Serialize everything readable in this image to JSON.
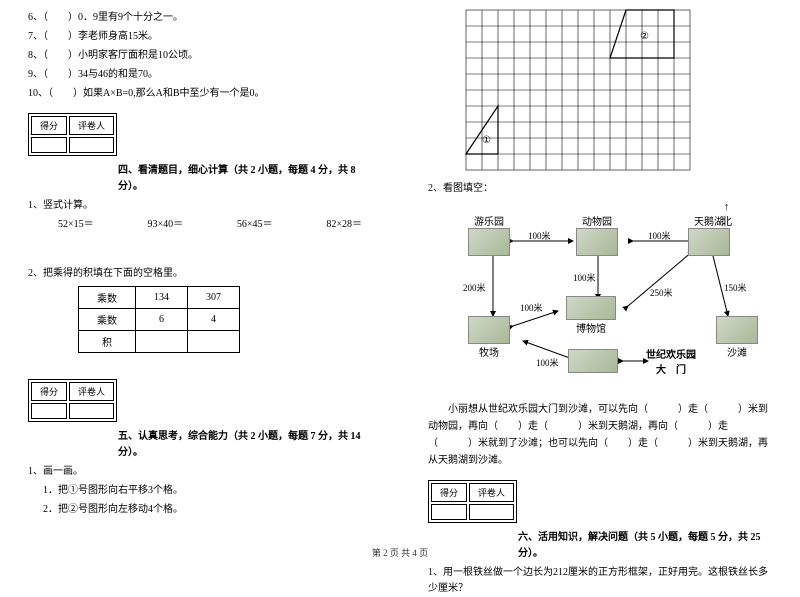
{
  "left": {
    "tf": [
      "6、（　　）0．9里有9个十分之一。",
      "7、（　　）李老师身高15米。",
      "8、（　　）小明家客厅面积是10公顷。",
      "9、（　　）34与46的和是70。",
      "10、（　　）如果A×B=0,那么A和B中至少有一个是0。"
    ],
    "score_h1": "得分",
    "score_h2": "评卷人",
    "sec4": "四、看清题目，细心计算（共 2 小题，每题 4 分，共 8 分）。",
    "q4_1": "1、竖式计算。",
    "calc": [
      "52×15＝",
      "93×40＝",
      "56×45＝",
      "82×28＝"
    ],
    "q4_2": "2、把乘得的积填在下面的空格里。",
    "table": {
      "r1": [
        "乘数",
        "134",
        "307"
      ],
      "r2": [
        "乘数",
        "6",
        "4"
      ],
      "r3": [
        "积",
        "",
        ""
      ]
    },
    "sec5": "五、认真思考，综合能力（共 2 小题，每题 7 分，共 14 分）。",
    "q5_1": "1、画一画。",
    "q5_1a": "1．把①号图形向右平移3个格。",
    "q5_1b": "2．把②号图形向左移动4个格。"
  },
  "right": {
    "grid": {
      "cols": 14,
      "rows": 10,
      "cell": 16
    },
    "shape1_label": "①",
    "shape2_label": "②",
    "q2": "2、看图填空：",
    "north_arrow": "↑",
    "north_label": "北",
    "places": {
      "amusement": "游乐园",
      "zoo": "动物园",
      "lake": "天鹅湖",
      "ranch": "牧场",
      "museum": "博物馆",
      "beach": "沙滩",
      "gate1": "世纪欢乐园",
      "gate2": "大　门"
    },
    "dist": {
      "d100": "100米",
      "d150": "150米",
      "d200": "200米",
      "d250": "250米"
    },
    "para": "　　小丽想从世纪欢乐园大门到沙滩，可以先向（　　　）走（　　　）米到动物园，再向（　　）走（　　　）米到天鹅湖，再向（　　　）走（　　　）米就到了沙滩；也可以先向（　　）走（　　　）米到天鹅湖，再从天鹅湖到沙滩。",
    "score_h1": "得分",
    "score_h2": "评卷人",
    "sec6": "六、活用知识，解决问题（共 5 小题，每题 5 分，共 25 分）。",
    "q6_1": "1、用一根铁丝做一个边长为212厘米的正方形框架，正好用完。这根铁丝长多少厘米？"
  },
  "footer": "第 2 页 共 4 页"
}
